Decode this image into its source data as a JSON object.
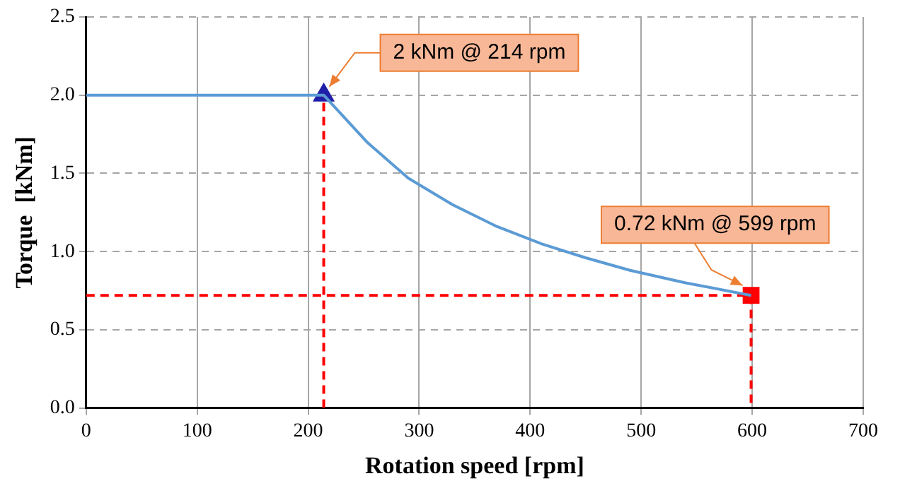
{
  "chart_data": {
    "type": "line",
    "xlabel": "Rotation speed [rpm]",
    "ylabel": "Torque  [kNm]",
    "xlim": [
      0,
      700
    ],
    "xticks": [
      0,
      100,
      200,
      300,
      400,
      500,
      600,
      700
    ],
    "ylim": [
      0,
      2.5
    ],
    "yticks": [
      {
        "value": 0,
        "label": "0.0"
      },
      {
        "value": 0.5,
        "label": "0.5"
      },
      {
        "value": 1,
        "label": "1.0"
      },
      {
        "value": 1.5,
        "label": "1.5"
      },
      {
        "value": 2,
        "label": "2.0"
      },
      {
        "value": 2.5,
        "label": "2.5"
      }
    ],
    "grid": true,
    "legend": false,
    "series": [
      {
        "type": "line",
        "color": "#5b9bd5",
        "marker": "none",
        "line_style": "solid",
        "x": [
          0,
          214,
          253,
          290,
          330,
          370,
          410,
          450,
          490,
          540,
          599
        ],
        "values": [
          2,
          2,
          1.7,
          1.47,
          1.3,
          1.16,
          1.05,
          0.96,
          0.88,
          0.8,
          0.72
        ]
      },
      {
        "type": "line",
        "color": "#ff0000",
        "marker": "none",
        "line_style": "dashed",
        "x": [
          214,
          214
        ],
        "values": [
          0,
          2
        ]
      },
      {
        "type": "line",
        "color": "#ff0000",
        "marker": "none",
        "line_style": "dashed",
        "x": [
          0,
          599,
          599
        ],
        "values": [
          0.72,
          0.72,
          0
        ]
      },
      {
        "type": "scatter",
        "color": "#1f1fa8",
        "marker": "triangle",
        "x": [
          214
        ],
        "values": [
          2
        ]
      },
      {
        "type": "scatter",
        "color": "#ff0000",
        "marker": "square",
        "x": [
          599
        ],
        "values": [
          0.72
        ]
      }
    ],
    "annotations": [
      {
        "text": "2 kNm @ 214 rpm",
        "x": 214,
        "y": 2
      },
      {
        "text": "0.72 kNm @ 599 rpm",
        "x": 599,
        "y": 0.72
      }
    ]
  }
}
